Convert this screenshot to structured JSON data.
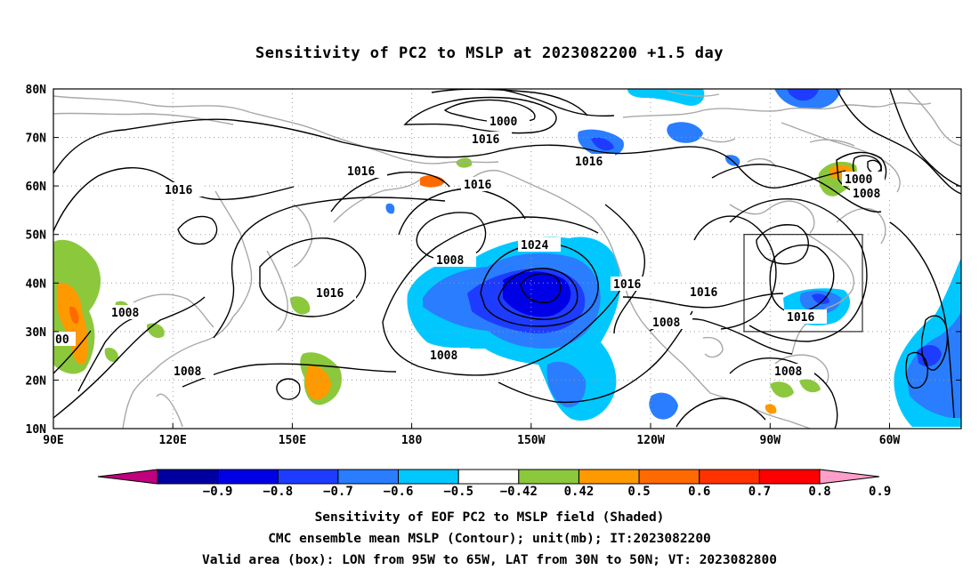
{
  "title": "Sensitivity of PC2 to MSLP at 2023082200 +1.5 day",
  "map": {
    "lon_range": [
      "90E",
      "50W"
    ],
    "lat_range": [
      "10N",
      "80N"
    ],
    "lat_labels": [
      "80N",
      "70N",
      "60N",
      "50N",
      "40N",
      "30N",
      "20N",
      "10N"
    ],
    "lon_labels": [
      "90E",
      "120E",
      "150E",
      "180",
      "150W",
      "120W",
      "90W",
      "60W"
    ],
    "grid": "dotted",
    "valid_box_label": "LON 95W to 65W, LAT 30N to 50N"
  },
  "contour_labels": [
    "1000",
    "1016",
    "1016",
    "1016",
    "1016",
    "1016",
    "1000",
    "1008",
    "1024",
    "1008",
    "1016",
    "1016",
    "1016",
    "1008",
    "1008",
    "1016",
    "1008",
    "1008",
    "1008",
    "1016",
    "00"
  ],
  "colorbar": {
    "labels": [
      "-0.9",
      "-0.8",
      "-0.7",
      "-0.6",
      "-0.5",
      "-0.42",
      "0.42",
      "0.5",
      "0.6",
      "0.7",
      "0.8",
      "0.9"
    ],
    "colors": [
      "#c0007f",
      "#0000a0",
      "#0000e6",
      "#1e3cff",
      "#2a7dff",
      "#00c8ff",
      "#ffffff",
      "#8cc83c",
      "#ff9900",
      "#ff6a00",
      "#ff3200",
      "#ff0000",
      "#ff9ec8"
    ]
  },
  "captions": {
    "line1": "Sensitivity of EOF PC2 to MSLP field (Shaded)",
    "line2": "CMC ensemble mean MSLP (Contour); unit(mb); IT:2023082200",
    "line3": "Valid area (box): LON from 95W to 65W, LAT from 30N to 50N; VT: 2023082800"
  }
}
